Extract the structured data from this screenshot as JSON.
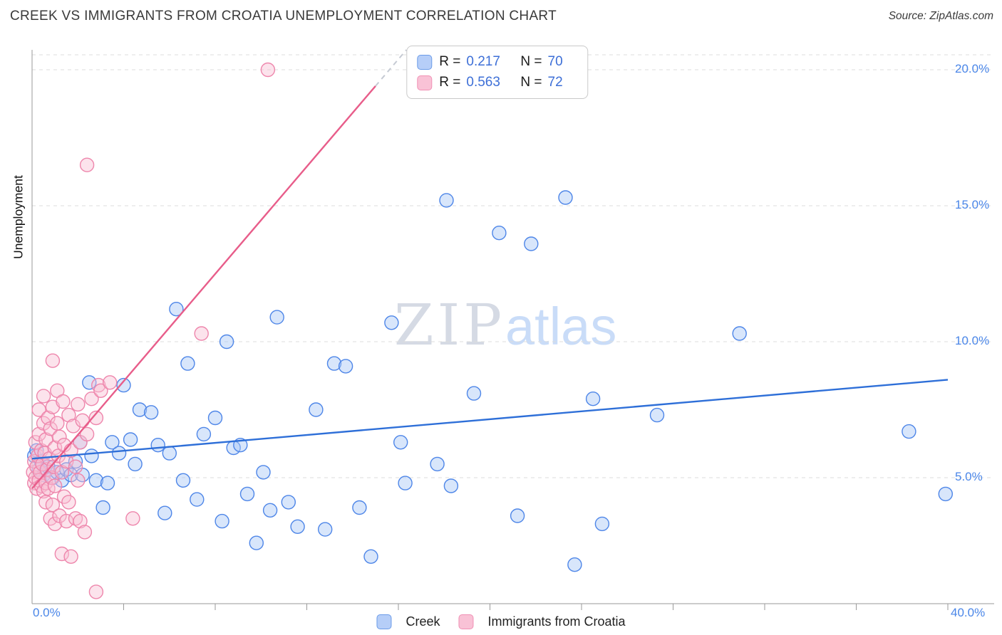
{
  "page": {
    "source": "Source: ZipAtlas.com"
  },
  "colors": {
    "creek_fill": "#a9c8f7",
    "creek_stroke": "#4e86e8",
    "croatia_fill": "#f9c0d4",
    "croatia_stroke": "#ee86ac",
    "trend_creek": "#2e6fd8",
    "trend_croatia": "#e85d8a",
    "axis_text": "#4a86e8",
    "grid": "#dcdcdc"
  },
  "chart_data": {
    "type": "scatter",
    "title": "CREEK VS IMMIGRANTS FROM CROATIA UNEMPLOYMENT CORRELATION CHART",
    "xlabel": "",
    "ylabel": "Unemployment",
    "xlim": [
      0,
      40
    ],
    "ylim": [
      0,
      20.8
    ],
    "grid": "horizontal-dashed",
    "legend_position": "top-center",
    "watermark": {
      "part1": "ZIP",
      "part2": "atlas"
    },
    "x_ticks": {
      "min_label": "0.0%",
      "max_label": "40.0%",
      "interval_pct": 4
    },
    "y_ticks": [
      {
        "value": 5,
        "label": "5.0%"
      },
      {
        "value": 10,
        "label": "10.0%"
      },
      {
        "value": 15,
        "label": "15.0%"
      },
      {
        "value": 20,
        "label": "20.0%"
      }
    ],
    "stats": [
      {
        "series": "Creek",
        "r_label": "R =",
        "r": "0.217",
        "n_label": "N =",
        "n": "70"
      },
      {
        "series": "Immigrants from Croatia",
        "r_label": "R =",
        "r": "0.563",
        "n_label": "N =",
        "n": "72"
      }
    ],
    "series": [
      {
        "id": "creek",
        "name": "Creek",
        "fill": "#a9c8f7",
        "stroke": "#4e86e8",
        "points": [
          [
            0.1,
            5.8
          ],
          [
            0.2,
            6.0
          ],
          [
            0.3,
            5.3
          ],
          [
            0.4,
            5.6
          ],
          [
            0.5,
            5.1
          ],
          [
            0.7,
            5.4
          ],
          [
            0.9,
            5.0
          ],
          [
            1.1,
            5.2
          ],
          [
            1.3,
            4.9
          ],
          [
            1.5,
            5.3
          ],
          [
            1.7,
            5.1
          ],
          [
            1.9,
            5.6
          ],
          [
            2.1,
            6.3
          ],
          [
            2.2,
            5.1
          ],
          [
            2.5,
            8.5
          ],
          [
            2.6,
            5.8
          ],
          [
            2.8,
            4.9
          ],
          [
            3.1,
            3.9
          ],
          [
            3.3,
            4.8
          ],
          [
            3.5,
            6.3
          ],
          [
            3.8,
            5.9
          ],
          [
            4.0,
            8.4
          ],
          [
            4.3,
            6.4
          ],
          [
            4.5,
            5.5
          ],
          [
            4.7,
            7.5
          ],
          [
            5.2,
            7.4
          ],
          [
            5.5,
            6.2
          ],
          [
            5.8,
            3.7
          ],
          [
            6.0,
            5.9
          ],
          [
            6.3,
            11.2
          ],
          [
            6.6,
            4.9
          ],
          [
            6.8,
            9.2
          ],
          [
            7.2,
            4.2
          ],
          [
            7.5,
            6.6
          ],
          [
            8.0,
            7.2
          ],
          [
            8.3,
            3.4
          ],
          [
            8.5,
            10.0
          ],
          [
            8.8,
            6.1
          ],
          [
            9.1,
            6.2
          ],
          [
            9.4,
            4.4
          ],
          [
            9.8,
            2.6
          ],
          [
            10.1,
            5.2
          ],
          [
            10.4,
            3.8
          ],
          [
            10.7,
            10.9
          ],
          [
            11.2,
            4.1
          ],
          [
            11.6,
            3.2
          ],
          [
            12.4,
            7.5
          ],
          [
            12.8,
            3.1
          ],
          [
            13.2,
            9.2
          ],
          [
            13.7,
            9.1
          ],
          [
            14.3,
            3.9
          ],
          [
            14.8,
            2.1
          ],
          [
            15.7,
            10.7
          ],
          [
            16.1,
            6.3
          ],
          [
            16.3,
            4.8
          ],
          [
            17.7,
            5.5
          ],
          [
            18.1,
            15.2
          ],
          [
            18.3,
            4.7
          ],
          [
            19.3,
            8.1
          ],
          [
            20.4,
            14.0
          ],
          [
            21.2,
            3.6
          ],
          [
            21.8,
            13.6
          ],
          [
            23.3,
            15.3
          ],
          [
            23.7,
            1.8
          ],
          [
            24.5,
            7.9
          ],
          [
            24.9,
            3.3
          ],
          [
            27.3,
            7.3
          ],
          [
            30.9,
            10.3
          ],
          [
            38.3,
            6.7
          ],
          [
            39.9,
            4.4
          ]
        ]
      },
      {
        "id": "croatia",
        "name": "Immigrants from Croatia",
        "fill": "#f9c0d4",
        "stroke": "#ee86ac",
        "points": [
          [
            0.05,
            5.2
          ],
          [
            0.1,
            4.8
          ],
          [
            0.1,
            5.6
          ],
          [
            0.15,
            5.0
          ],
          [
            0.15,
            6.3
          ],
          [
            0.2,
            4.6
          ],
          [
            0.2,
            5.4
          ],
          [
            0.25,
            5.8
          ],
          [
            0.3,
            4.9
          ],
          [
            0.3,
            6.6
          ],
          [
            0.3,
            7.5
          ],
          [
            0.35,
            5.2
          ],
          [
            0.4,
            4.7
          ],
          [
            0.4,
            6.0
          ],
          [
            0.45,
            5.5
          ],
          [
            0.5,
            4.5
          ],
          [
            0.5,
            7.0
          ],
          [
            0.5,
            8.0
          ],
          [
            0.55,
            5.9
          ],
          [
            0.6,
            4.8
          ],
          [
            0.6,
            6.4
          ],
          [
            0.6,
            4.1
          ],
          [
            0.65,
            5.3
          ],
          [
            0.7,
            7.2
          ],
          [
            0.7,
            4.6
          ],
          [
            0.75,
            5.7
          ],
          [
            0.8,
            6.8
          ],
          [
            0.8,
            3.5
          ],
          [
            0.85,
            5.0
          ],
          [
            0.9,
            7.6
          ],
          [
            0.9,
            4.0
          ],
          [
            0.9,
            9.3
          ],
          [
            0.95,
            5.4
          ],
          [
            1.0,
            6.1
          ],
          [
            1.0,
            4.7
          ],
          [
            1.0,
            3.3
          ],
          [
            1.1,
            7.0
          ],
          [
            1.1,
            8.2
          ],
          [
            1.15,
            5.8
          ],
          [
            1.2,
            6.5
          ],
          [
            1.2,
            3.6
          ],
          [
            1.3,
            5.2
          ],
          [
            1.3,
            2.2
          ],
          [
            1.35,
            7.8
          ],
          [
            1.4,
            6.2
          ],
          [
            1.4,
            4.3
          ],
          [
            1.5,
            5.6
          ],
          [
            1.5,
            3.4
          ],
          [
            1.6,
            7.3
          ],
          [
            1.6,
            4.1
          ],
          [
            1.7,
            6.0
          ],
          [
            1.7,
            2.1
          ],
          [
            1.8,
            6.9
          ],
          [
            1.9,
            5.4
          ],
          [
            1.9,
            3.5
          ],
          [
            2.0,
            7.7
          ],
          [
            2.0,
            4.9
          ],
          [
            2.1,
            6.3
          ],
          [
            2.1,
            3.4
          ],
          [
            2.2,
            7.1
          ],
          [
            2.3,
            3.0
          ],
          [
            2.4,
            6.6
          ],
          [
            2.4,
            16.5
          ],
          [
            2.6,
            7.9
          ],
          [
            2.8,
            7.2
          ],
          [
            2.8,
            0.8
          ],
          [
            2.9,
            8.4
          ],
          [
            3.0,
            8.2
          ],
          [
            3.4,
            8.5
          ],
          [
            4.4,
            3.5
          ],
          [
            7.4,
            10.3
          ],
          [
            10.3,
            20.0
          ]
        ]
      }
    ],
    "trends": [
      {
        "id": "creek",
        "color": "#2e6fd8",
        "x1": 0,
        "y1": 5.7,
        "x2": 40,
        "y2": 8.6,
        "ext_dashed": false
      },
      {
        "id": "croatia",
        "color": "#e85d8a",
        "x1": 0,
        "y1": 4.6,
        "x2": 15.0,
        "y2": 19.4,
        "ext_dashed": true
      }
    ]
  }
}
